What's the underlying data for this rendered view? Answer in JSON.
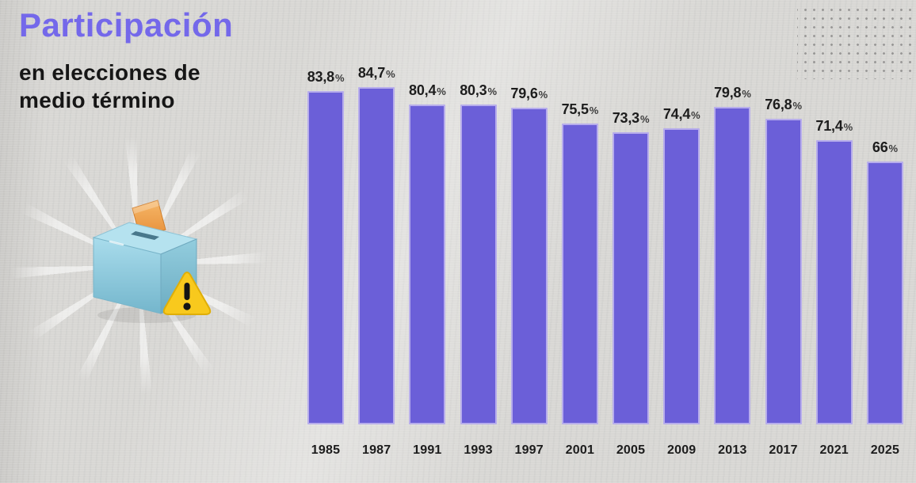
{
  "header": {
    "title": "Participación",
    "title_color": "#7468ea",
    "subtitle_line1": "en elecciones de",
    "subtitle_line2": "medio término"
  },
  "decorations": {
    "dots_pattern": "gray-dot-grid",
    "starburst": "white-rays",
    "icons": [
      "ballot-box-icon",
      "warning-icon"
    ]
  },
  "chart_data": {
    "type": "bar",
    "title": "Participación en elecciones de medio término",
    "categories": [
      "1985",
      "1987",
      "1991",
      "1993",
      "1997",
      "2001",
      "2005",
      "2009",
      "2013",
      "2017",
      "2021",
      "2025"
    ],
    "values": [
      83.8,
      84.7,
      80.4,
      80.3,
      79.6,
      75.5,
      73.3,
      74.4,
      79.8,
      76.8,
      71.4,
      66
    ],
    "value_labels": [
      "83,8",
      "84,7",
      "80,4",
      "80,3",
      "79,6",
      "75,5",
      "73,3",
      "74,4",
      "79,8",
      "76,8",
      "71,4",
      "66"
    ],
    "unit": "%",
    "xlabel": "",
    "ylabel": "",
    "ylim": [
      0,
      100
    ],
    "grid": false,
    "legend": false,
    "value_label_position": "above-bar",
    "bar_color": "#6b5fd8",
    "bar_edge_color": "#b7adec",
    "label_color": "#1d1d1d"
  }
}
